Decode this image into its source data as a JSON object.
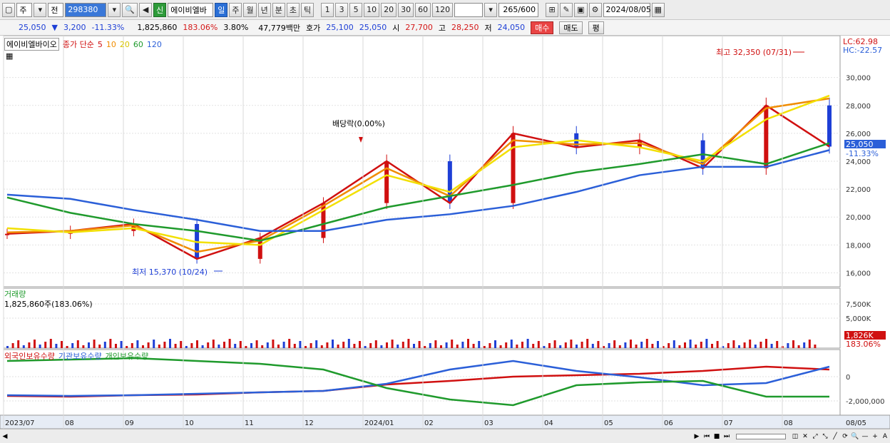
{
  "toolbar": {
    "period_type": "주",
    "prev_label": "전",
    "code": "298380",
    "new_badge": "신",
    "stock_name": "에이비엘바",
    "tabs": [
      "일",
      "주",
      "월",
      "년",
      "분",
      "초",
      "틱"
    ],
    "active_tab": "일",
    "ranges": [
      "1",
      "3",
      "5",
      "10",
      "20",
      "30",
      "60",
      "120"
    ],
    "count": "265",
    "count_total": "/600",
    "date": "2024/08/05"
  },
  "quote": {
    "price": "25,050",
    "change": "3,200",
    "change_pct": "-11.33%",
    "volume": "1,825,860",
    "vol_ratio": "183.06%",
    "turnover": "3.80%",
    "amount": "47,779백만",
    "bid_label": "호가",
    "bid1": "25,100",
    "bid2": "25,050",
    "open_label": "시",
    "open": "27,700",
    "high_label": "고",
    "high": "28,250",
    "low_label": "저",
    "low": "24,050",
    "buy_btn": "매수",
    "sell_btn": "매도",
    "eval_btn": "평"
  },
  "price_panel": {
    "name": "에이비엘바이오",
    "ma_label": "종가 단순",
    "ma_periods": [
      "5",
      "10",
      "20",
      "60",
      "120"
    ],
    "ma_colors": [
      "#d01010",
      "#f08c00",
      "#f2e000",
      "#1f9a2c",
      "#2b5fd8"
    ],
    "lc": "LC:62.98",
    "hc": "HC:-22.57",
    "high_note": "최고 32,350 (07/31)",
    "low_note": "최저 15,370 (10/24)",
    "div_note": "배당락(0.00%)",
    "current_price": "25,050",
    "current_pct": "-11.33%",
    "y_ticks": [
      "30,000",
      "28,000",
      "26,000",
      "24,000",
      "22,000",
      "20,000",
      "18,000",
      "16,000"
    ]
  },
  "volume_panel": {
    "title": "거래량",
    "value": "1,825,860주(183.06%)",
    "y_ticks": [
      "7,500K",
      "5,000K"
    ],
    "current": "1,826K",
    "current_pct": "183.06%"
  },
  "holdings_panel": {
    "series": [
      "외국인보유수량",
      "기관보유수량",
      "개인보유수량"
    ],
    "series_colors": [
      "#d01010",
      "#2b5fd8",
      "#1f9a2c"
    ],
    "y_ticks": [
      "0",
      "-2,000,000"
    ]
  },
  "x_axis": [
    "2023/07",
    "08",
    "09",
    "10",
    "11",
    "12",
    "2024/01",
    "02",
    "03",
    "04",
    "05",
    "06",
    "07",
    "08",
    "08/05"
  ],
  "chart_data": {
    "type": "line",
    "x": [
      "2023/07",
      "08",
      "09",
      "10",
      "11",
      "12",
      "2024/01",
      "02",
      "03",
      "04",
      "05",
      "06",
      "07",
      "08"
    ],
    "series": [
      {
        "name": "5",
        "values": [
          18800,
          19000,
          19500,
          17000,
          18500,
          21000,
          24000,
          21000,
          26000,
          25000,
          25500,
          23500,
          28000,
          25050
        ]
      },
      {
        "name": "10",
        "values": [
          18900,
          19000,
          19400,
          17500,
          18300,
          20800,
          23500,
          21500,
          25500,
          25200,
          25300,
          23800,
          27800,
          28500
        ]
      },
      {
        "name": "20",
        "values": [
          19200,
          18900,
          19200,
          18200,
          18000,
          20500,
          23000,
          21800,
          25000,
          25500,
          25000,
          24000,
          27000,
          28700
        ]
      },
      {
        "name": "60",
        "values": [
          21400,
          20300,
          19500,
          19000,
          18300,
          19500,
          20700,
          21500,
          22300,
          23200,
          23800,
          24500,
          23800,
          25300
        ]
      },
      {
        "name": "120",
        "values": [
          21600,
          21300,
          20500,
          19800,
          19000,
          19000,
          19800,
          20200,
          20800,
          21800,
          23000,
          23600,
          23600,
          24800
        ]
      }
    ],
    "ylim": [
      15000,
      33000
    ]
  }
}
